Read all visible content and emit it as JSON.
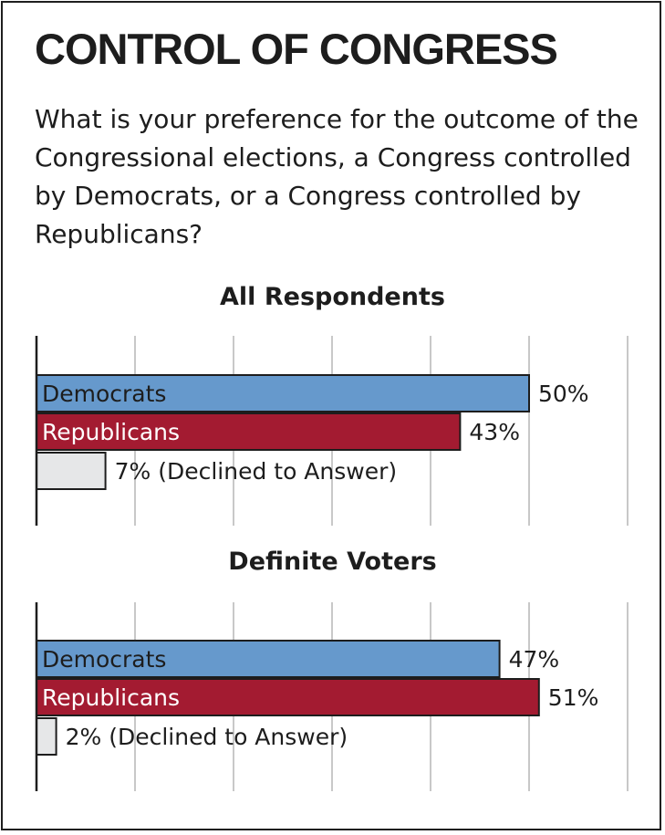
{
  "title": "CONTROL OF CONGRESS",
  "question": "What is your preference for the outcome of the Congressional elections, a Congress controlled by Democrats, or a Congress controlled by Republicans?",
  "colors": {
    "democrats": "#6699cc",
    "republicans": "#a31b31",
    "declined": "#e6e7e8",
    "gridline": "#c8c8c8",
    "axis": "#1d1d1d"
  },
  "chart_data": [
    {
      "type": "bar",
      "orientation": "horizontal",
      "title": "All Respondents",
      "xlim": [
        0,
        60
      ],
      "grid": true,
      "categories": [
        "Democrats",
        "Republicans",
        "Declined to Answer"
      ],
      "values": [
        50,
        43,
        7
      ],
      "value_labels": [
        "50%",
        "43%",
        "7% (Declined to Answer)"
      ]
    },
    {
      "type": "bar",
      "orientation": "horizontal",
      "title": "Definite Voters",
      "xlim": [
        0,
        60
      ],
      "grid": true,
      "categories": [
        "Democrats",
        "Republicans",
        "Declined to Answer"
      ],
      "values": [
        47,
        51,
        2
      ],
      "value_labels": [
        "47%",
        "51%",
        "2% (Declined to Answer)"
      ]
    }
  ]
}
